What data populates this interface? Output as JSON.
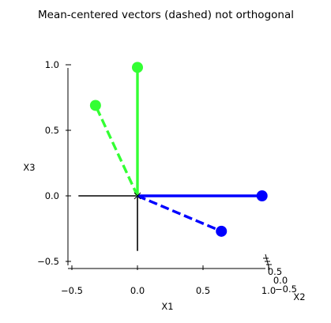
{
  "chart_data": {
    "type": "scatter",
    "projection": "3d",
    "title": "Mean-centered vectors (dashed) not orthogonal",
    "axes": {
      "x": {
        "label": "X1",
        "ticks": [
          -0.5,
          0.0,
          0.5,
          1.0
        ],
        "tick_labels": [
          "-0.5",
          "0.0",
          "0.5",
          "1.0"
        ],
        "lim": [
          -0.5,
          1.0
        ]
      },
      "y": {
        "label": "X2",
        "ticks": [
          -0.5,
          0.0,
          0.5
        ],
        "tick_labels": [
          "-0.5",
          "0.0",
          "0.5"
        ],
        "lim": [
          -0.5,
          0.5
        ]
      },
      "z": {
        "label": "X3",
        "ticks": [
          -0.5,
          0.0,
          0.5,
          1.0
        ],
        "tick_labels": [
          "-0.5",
          "0.0",
          "0.5",
          "1.0"
        ],
        "lim": [
          -0.5,
          1.0
        ]
      }
    },
    "grid": false,
    "coordinate_axes": [
      {
        "from": [
          -0.45,
          0,
          0
        ],
        "to": [
          0,
          0,
          0
        ]
      },
      {
        "from": [
          0,
          0,
          -0.42
        ],
        "to": [
          0,
          0,
          0
        ]
      }
    ],
    "vectors": [
      {
        "style": "solid",
        "color": "#0000ff",
        "from": [
          0,
          0,
          0
        ],
        "to": [
          0.95,
          0,
          0
        ]
      },
      {
        "style": "solid",
        "color": "#33ff33",
        "from": [
          0,
          0,
          0
        ],
        "to": [
          0,
          0,
          0.98
        ]
      },
      {
        "style": "dashed",
        "color": "#0000ff",
        "from": [
          0,
          0,
          0
        ],
        "to": [
          0.64,
          0,
          -0.27
        ]
      },
      {
        "style": "dashed",
        "color": "#33ff33",
        "from": [
          0,
          0,
          0
        ],
        "to": [
          -0.32,
          0,
          0.69
        ]
      }
    ]
  }
}
